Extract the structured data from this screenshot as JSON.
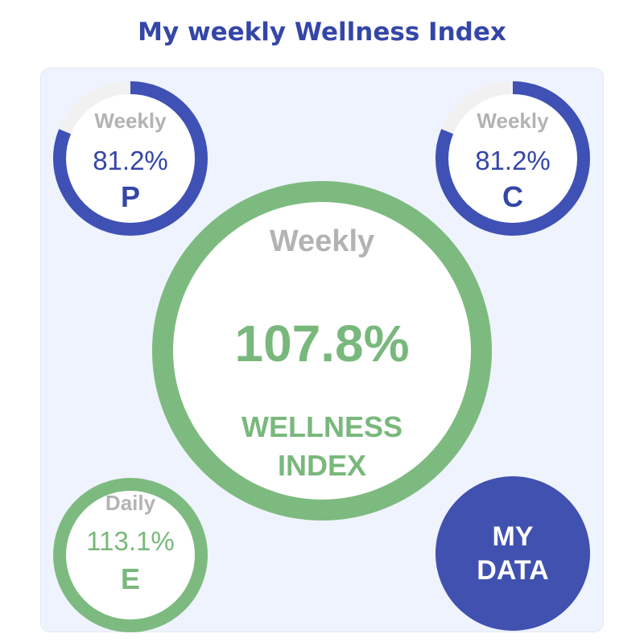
{
  "title": "My weekly Wellness Index",
  "colors": {
    "title": "#3446a7",
    "accent_blue": "#3f51b5",
    "accent_green": "#7dba7f",
    "track": "#f1f1f1",
    "muted_text": "#b3b3b3",
    "panel_bg": "#eff3fd"
  },
  "gauges": {
    "p": {
      "period": "Weekly",
      "value": "81.2%",
      "letter": "P",
      "fraction": 0.812
    },
    "c": {
      "period": "Weekly",
      "value": "81.2%",
      "letter": "C",
      "fraction": 0.812
    },
    "e": {
      "period": "Daily",
      "value": "113.1%",
      "letter": "E",
      "fraction": 1.0
    },
    "wellness": {
      "period": "Weekly",
      "value": "107.8%",
      "label": "WELLNESS INDEX",
      "fraction": 1.0
    }
  },
  "my_data_button": {
    "label": "MY DATA"
  }
}
